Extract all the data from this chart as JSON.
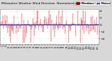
{
  "title": "Milwaukee Weather Wind Direction  Normalized and Median  (24 Hours) (New)",
  "title_fontsize": 3.2,
  "bg_color": "#d8d8d8",
  "plot_bg_color": "#ffffff",
  "bar_color": "#cc0000",
  "median_color": "#0000cc",
  "median_value": 0.0,
  "ylim": [
    -5.5,
    4.5
  ],
  "yticks": [
    -4,
    -2,
    0,
    2,
    4
  ],
  "ytick_fontsize": 3.0,
  "xtick_fontsize": 1.8,
  "n_points": 144,
  "seed": 42,
  "legend_bar_color": "#cc0000",
  "legend_line_color": "#0000cc",
  "legend_label_bar": "Normalized",
  "legend_label_line": "Median",
  "legend_fontsize": 2.5,
  "grid_color": "#aaaaaa",
  "vline_positions": [
    24,
    48,
    72,
    96,
    120
  ]
}
